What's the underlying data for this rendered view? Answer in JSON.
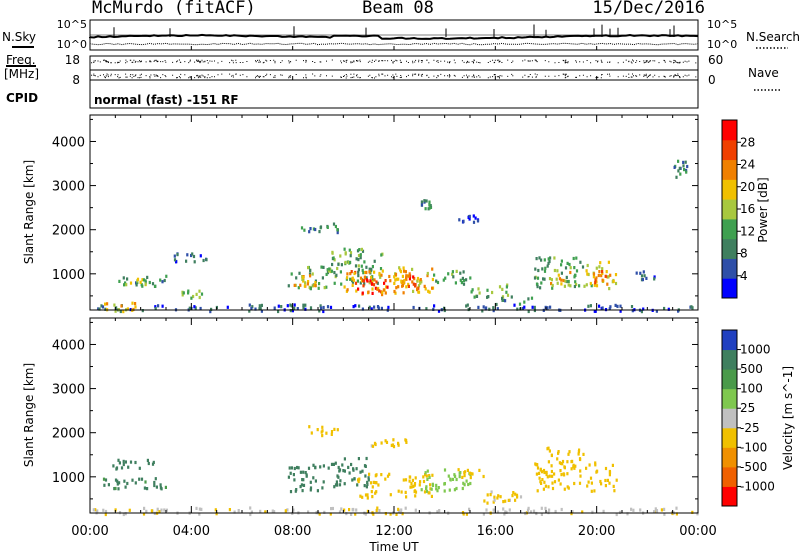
{
  "header": {
    "station": "McMurdo (fitACF)",
    "beam": "Beam 08",
    "date": "15/Dec/2016"
  },
  "noise_panel": {
    "left_label": "N.Sky",
    "right_label": "N.Search",
    "left_ticks": [
      "10^5",
      "10^0"
    ],
    "right_ticks": [
      "10^5",
      "10^0"
    ]
  },
  "freq_panel": {
    "left_label_line1": "Freq.",
    "left_label_line2": "[MHz]",
    "right_label": "Nave",
    "left_ticks": [
      "18",
      "8"
    ],
    "right_ticks": [
      "60",
      "0"
    ]
  },
  "cpid_panel": {
    "label": "CPID",
    "text": "normal (fast) -151 RF"
  },
  "colors": {
    "power_scale": [
      "#0000ff",
      "#2f4fa8",
      "#3f7f5f",
      "#3fa050",
      "#a8c83f",
      "#f0c000",
      "#f08000",
      "#f04000",
      "#ff0000"
    ],
    "velocity_scale": [
      "#2040c0",
      "#3f7f5f",
      "#4a9a4a",
      "#7fc84f",
      "#c0c0c0",
      "#f0c000",
      "#f09000",
      "#f06000",
      "#ff0000"
    ]
  },
  "chart_data": [
    {
      "type": "heatmap",
      "panel": "power",
      "xlabel": "",
      "ylabel": "Slant Range [km]",
      "xlim": [
        0,
        24
      ],
      "ylim": [
        180,
        4600
      ],
      "yticks": [
        1000,
        2000,
        3000,
        4000
      ],
      "colorbar_label": "Power [dB]",
      "colorbar_ticks": [
        "28",
        "24",
        "20",
        "16",
        "12",
        "8",
        "4"
      ],
      "colorbar_range": [
        0,
        32
      ],
      "patches": [
        {
          "t0": 0.0,
          "t1": 24.0,
          "r0": 180,
          "r1": 330,
          "value": 6
        },
        {
          "t0": 0.5,
          "t1": 2.0,
          "r0": 180,
          "r1": 380,
          "value": 20
        },
        {
          "t0": 1.0,
          "t1": 3.0,
          "r0": 750,
          "r1": 1000,
          "value": 10
        },
        {
          "t0": 1.2,
          "t1": 2.2,
          "r0": 780,
          "r1": 920,
          "value": 16
        },
        {
          "t0": 3.5,
          "t1": 4.5,
          "r0": 450,
          "r1": 650,
          "value": 14
        },
        {
          "t0": 3.3,
          "t1": 4.6,
          "r0": 1300,
          "r1": 1500,
          "value": 6
        },
        {
          "t0": 7.8,
          "t1": 9.5,
          "r0": 700,
          "r1": 1250,
          "value": 12
        },
        {
          "t0": 8.0,
          "t1": 9.0,
          "r0": 750,
          "r1": 1000,
          "value": 20
        },
        {
          "t0": 8.3,
          "t1": 9.8,
          "r0": 1950,
          "r1": 2200,
          "value": 10
        },
        {
          "t0": 9.5,
          "t1": 11.5,
          "r0": 800,
          "r1": 1600,
          "value": 12
        },
        {
          "t0": 10.0,
          "t1": 12.5,
          "r0": 550,
          "r1": 1100,
          "value": 22
        },
        {
          "t0": 10.5,
          "t1": 11.8,
          "r0": 580,
          "r1": 900,
          "value": 28
        },
        {
          "t0": 12.0,
          "t1": 13.5,
          "r0": 600,
          "r1": 1200,
          "value": 20
        },
        {
          "t0": 12.5,
          "t1": 13.2,
          "r0": 700,
          "r1": 1000,
          "value": 26
        },
        {
          "t0": 13.5,
          "t1": 15.0,
          "r0": 800,
          "r1": 1100,
          "value": 12
        },
        {
          "t0": 15.0,
          "t1": 16.5,
          "r0": 500,
          "r1": 800,
          "value": 14
        },
        {
          "t0": 16.0,
          "t1": 17.5,
          "r0": 330,
          "r1": 550,
          "value": 10
        },
        {
          "t0": 17.5,
          "t1": 19.5,
          "r0": 700,
          "r1": 1400,
          "value": 12
        },
        {
          "t0": 18.0,
          "t1": 19.0,
          "r0": 750,
          "r1": 1100,
          "value": 20
        },
        {
          "t0": 19.5,
          "t1": 20.8,
          "r0": 700,
          "r1": 1300,
          "value": 18
        },
        {
          "t0": 19.8,
          "t1": 20.5,
          "r0": 800,
          "r1": 1100,
          "value": 24
        },
        {
          "t0": 13.0,
          "t1": 13.5,
          "r0": 2500,
          "r1": 2700,
          "value": 10
        },
        {
          "t0": 14.5,
          "t1": 15.5,
          "r0": 2200,
          "r1": 2350,
          "value": 6
        },
        {
          "t0": 21.5,
          "t1": 22.5,
          "r0": 900,
          "r1": 1100,
          "value": 6
        },
        {
          "t0": 23.0,
          "t1": 23.6,
          "r0": 3200,
          "r1": 3600,
          "value": 8
        }
      ]
    },
    {
      "type": "heatmap",
      "panel": "velocity",
      "xlabel": "Time UT",
      "ylabel": "Slant Range [km]",
      "xlim": [
        0,
        24
      ],
      "ylim": [
        180,
        4600
      ],
      "xticks": [
        "00:00",
        "04:00",
        "08:00",
        "12:00",
        "16:00",
        "20:00",
        "00:00"
      ],
      "yticks": [
        1000,
        2000,
        3000,
        4000
      ],
      "colorbar_label": "Velocity [m s^-1]",
      "colorbar_ticks": [
        "1000",
        "500",
        "100",
        "25",
        "-25",
        "-100",
        "-500",
        "-1000"
      ],
      "colorbar_range": [
        -1000,
        1000
      ],
      "patches": [
        {
          "t0": 0.0,
          "t1": 24.0,
          "r0": 180,
          "r1": 330,
          "value": -80
        },
        {
          "t0": 0.5,
          "t1": 3.0,
          "r0": 750,
          "r1": 1000,
          "value": 150
        },
        {
          "t0": 0.8,
          "t1": 2.5,
          "r0": 1200,
          "r1": 1450,
          "value": 200
        },
        {
          "t0": 7.8,
          "t1": 9.8,
          "r0": 700,
          "r1": 1300,
          "value": 300
        },
        {
          "t0": 8.5,
          "t1": 9.8,
          "r0": 1950,
          "r1": 2200,
          "value": -300
        },
        {
          "t0": 9.5,
          "t1": 11.0,
          "r0": 800,
          "r1": 1500,
          "value": 300
        },
        {
          "t0": 10.5,
          "t1": 13.5,
          "r0": 550,
          "r1": 1100,
          "value": -300
        },
        {
          "t0": 13.0,
          "t1": 15.0,
          "r0": 700,
          "r1": 1200,
          "value": 0
        },
        {
          "t0": 14.5,
          "t1": 15.5,
          "r0": 1000,
          "r1": 1200,
          "value": -200
        },
        {
          "t0": 15.5,
          "t1": 17.0,
          "r0": 400,
          "r1": 700,
          "value": -150
        },
        {
          "t0": 17.5,
          "t1": 20.8,
          "r0": 700,
          "r1": 1400,
          "value": -350
        },
        {
          "t0": 18.0,
          "t1": 19.5,
          "r0": 1300,
          "r1": 1700,
          "value": -300
        },
        {
          "t0": 11.0,
          "t1": 12.5,
          "r0": 1700,
          "r1": 1900,
          "value": -150
        }
      ]
    }
  ]
}
